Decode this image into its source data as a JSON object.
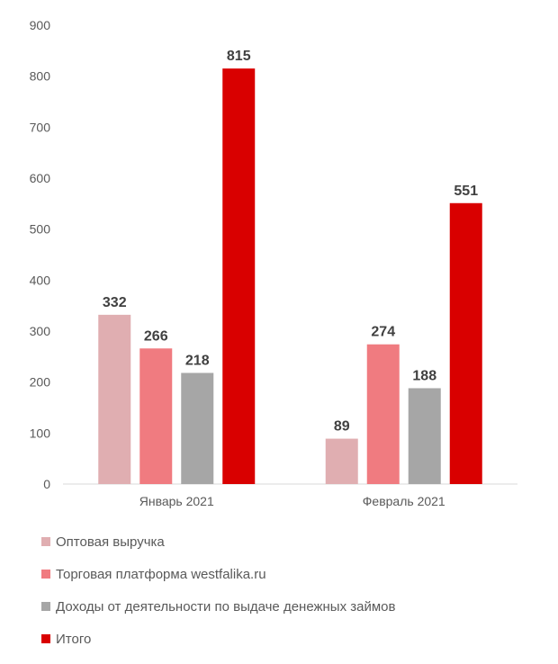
{
  "chart_data": {
    "type": "bar",
    "categories": [
      "Январь 2021",
      "Февраль 2021"
    ],
    "series": [
      {
        "name": "Оптовая выручка",
        "values": [
          332,
          89
        ],
        "color": "#e0aeb1"
      },
      {
        "name": "Торговая платформа westfalika.ru",
        "values": [
          266,
          274
        ],
        "color": "#f07b80"
      },
      {
        "name": "Доходы от деятельности по выдаче денежных займов",
        "values": [
          218,
          188
        ],
        "color": "#a6a6a6"
      },
      {
        "name": "Итого",
        "values": [
          815,
          551
        ],
        "color": "#d90000"
      }
    ],
    "yticks": [
      0,
      100,
      200,
      300,
      400,
      500,
      600,
      700,
      800,
      900
    ],
    "ylim": [
      0,
      900
    ],
    "grid": false,
    "legend_position": "bottom-left"
  }
}
